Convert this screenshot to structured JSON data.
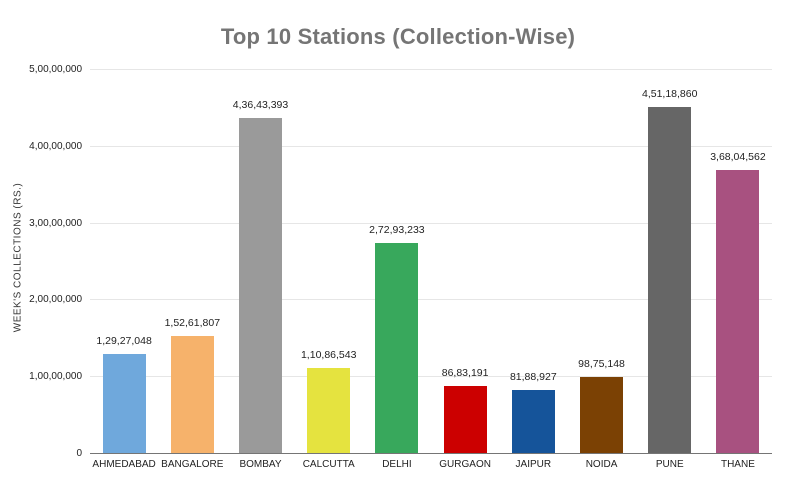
{
  "chart_data": {
    "type": "bar",
    "title": "Top 10 Stations (Collection-Wise)",
    "xlabel": "",
    "ylabel": "WEEK'S COLLECTIONS (RS.)",
    "categories": [
      "AHMEDABAD",
      "BANGALORE",
      "BOMBAY",
      "CALCUTTA",
      "DELHI",
      "GURGAON",
      "JAIPUR",
      "NOIDA",
      "PUNE",
      "THANE"
    ],
    "values": [
      12927048,
      15261807,
      43643393,
      11086543,
      27293233,
      8683191,
      8188927,
      9875148,
      45118860,
      36804562
    ],
    "value_labels": [
      "1,29,27,048",
      "1,52,61,807",
      "4,36,43,393",
      "1,10,86,543",
      "2,72,93,233",
      "86,83,191",
      "81,88,927",
      "98,75,148",
      "4,51,18,860",
      "3,68,04,562"
    ],
    "bar_colors": [
      "#6FA8DC",
      "#F6B26B",
      "#9A9A9A",
      "#E5E33F",
      "#38A85C",
      "#CC0000",
      "#15549A",
      "#7B4104",
      "#666666",
      "#A85180"
    ],
    "ylim": [
      0,
      50000000
    ],
    "ytick_values": [
      0,
      10000000,
      20000000,
      30000000,
      40000000,
      50000000
    ],
    "ytick_labels": [
      "0",
      "1,00,00,000",
      "2,00,00,000",
      "3,00,00,000",
      "4,00,00,000",
      "5,00,00,000"
    ],
    "grid": true,
    "legend": "none",
    "colors": {
      "title_text": "#757575",
      "axis_text": "#222222",
      "gridline": "#e6e6e6",
      "axis_line": "#757575",
      "background": "#ffffff"
    }
  }
}
